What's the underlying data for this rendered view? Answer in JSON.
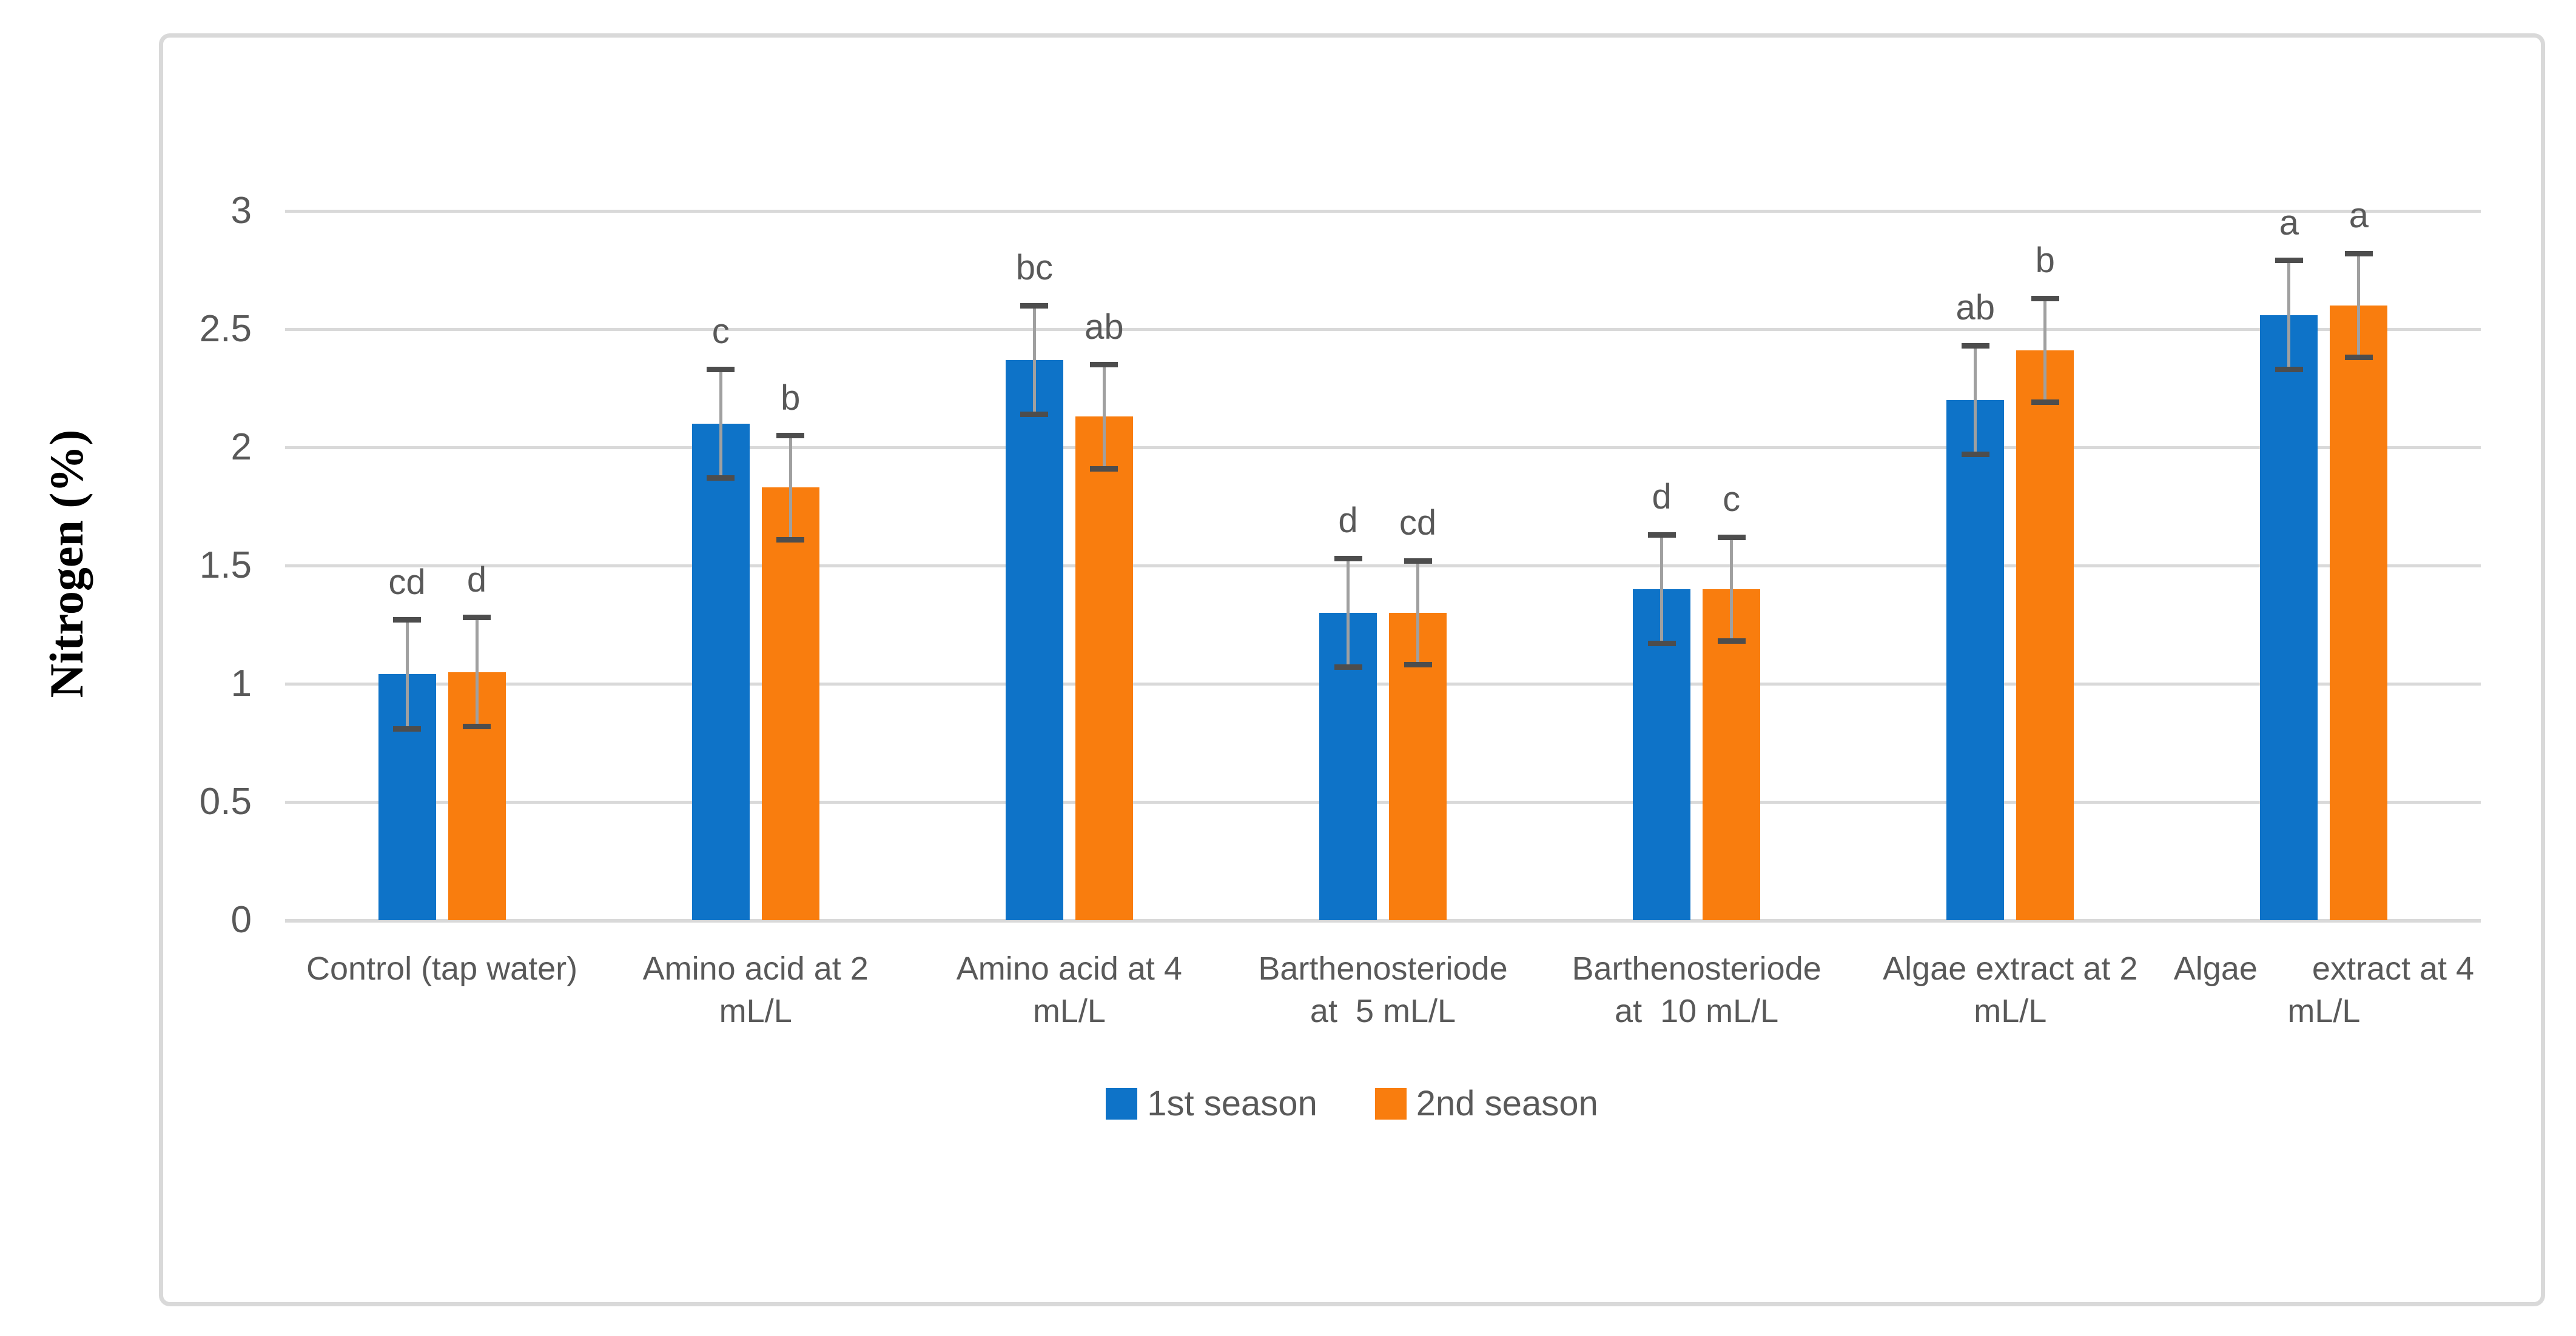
{
  "colors": {
    "background": "#ffffff",
    "frame_border": "#d9d9d9",
    "gridline": "#d9d9d9",
    "axis_text": "#595959",
    "letter_text": "#595959",
    "error_line": "#a0a0a0",
    "error_cap": "#4d4d4d",
    "y_axis_title_color": "#000000"
  },
  "chart_data": {
    "type": "bar",
    "title": "",
    "xlabel": "",
    "ylabel": "Nitrogen (%)",
    "ylim": [
      0,
      3
    ],
    "yticks": [
      3,
      2.5,
      2,
      1.5,
      1,
      0.5,
      0
    ],
    "ytick_labels": [
      "3",
      "2.5",
      "2",
      "1.5",
      "1",
      "0.5",
      "0"
    ],
    "grid": true,
    "legend_position": "bottom-center",
    "categories": [
      "Control (tap water)",
      "Amino acid at 2 mL/L",
      "Amino acid at 4 mL/L",
      "Barthenosteriode at 5 mL/L",
      "Barthenosteriode at 10 mL/L",
      "Algae extract at 2 mL/L",
      "Algae extract at 4 mL/L"
    ],
    "category_label_lines": [
      [
        "Control (tap water)"
      ],
      [
        "Amino acid at 2",
        "mL/L"
      ],
      [
        "Amino acid at 4",
        "mL/L"
      ],
      [
        "Barthenosteriode",
        "at  5 mL/L"
      ],
      [
        "Barthenosteriode",
        "at  10 mL/L"
      ],
      [
        "Algae extract at 2",
        "mL/L"
      ],
      [
        "Algae      extract at 4",
        "mL/L"
      ]
    ],
    "series": [
      {
        "name": "1st season",
        "color": "#0e73c8",
        "values": [
          1.04,
          2.1,
          2.37,
          1.3,
          1.4,
          2.2,
          2.56
        ],
        "errors": [
          0.23,
          0.23,
          0.23,
          0.23,
          0.23,
          0.23,
          0.23
        ],
        "letters": [
          "cd",
          "c",
          "bc",
          "d",
          "d",
          "ab",
          "a"
        ]
      },
      {
        "name": "2nd season",
        "color": "#f97d0e",
        "values": [
          1.05,
          1.83,
          2.13,
          1.3,
          1.4,
          2.41,
          2.6
        ],
        "errors": [
          0.23,
          0.22,
          0.22,
          0.22,
          0.22,
          0.22,
          0.22
        ],
        "letters": [
          "d",
          "b",
          "ab",
          "cd",
          "c",
          "b",
          "a"
        ]
      }
    ]
  }
}
